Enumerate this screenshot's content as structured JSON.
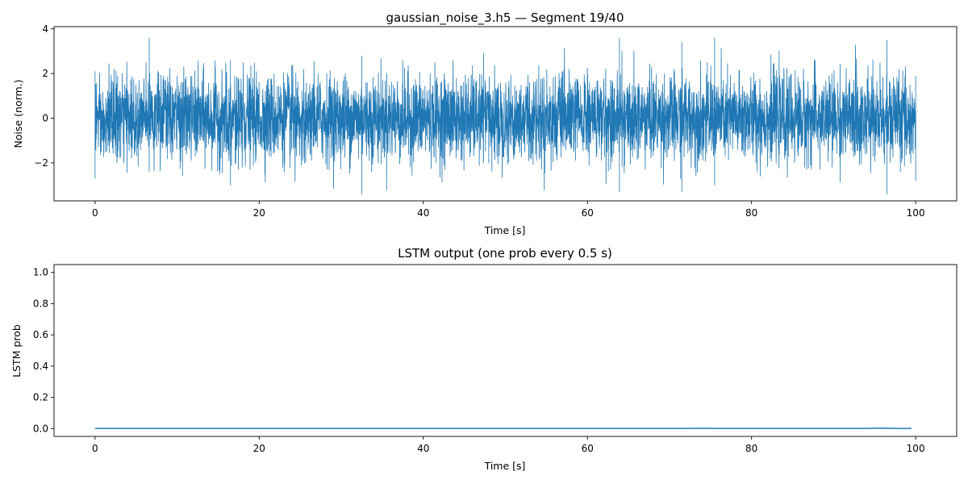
{
  "chart_data": [
    {
      "type": "line",
      "title": "gaussian_noise_3.h5 — Segment 19/40",
      "xlabel": "Time [s]",
      "ylabel": "Noise (norm.)",
      "xlim": [
        -5,
        105
      ],
      "ylim": [
        -3.7,
        4.1
      ],
      "xticks": [
        0,
        20,
        40,
        60,
        80,
        100
      ],
      "xtick_labels": [
        "0",
        "20",
        "40",
        "60",
        "80",
        "100"
      ],
      "yticks": [
        -2,
        0,
        2,
        4
      ],
      "ytick_labels": [
        "−2",
        "0",
        "2",
        "4"
      ],
      "grid": false,
      "color": "#1f77b4",
      "series": [
        {
          "description_of_values": "dense Gaussian noise sampled over 0–100 s",
          "x_range": [
            0,
            100
          ],
          "envelope": [
            {
              "x": 0,
              "min": -2.7,
              "max": 2.1
            },
            {
              "x": 6.6,
              "min": -2.4,
              "max": 3.6
            },
            {
              "x": 16.5,
              "min": -3.0,
              "max": 2.6
            },
            {
              "x": 32.5,
              "min": -3.4,
              "max": 2.8
            },
            {
              "x": 63.9,
              "min": -3.3,
              "max": 3.6
            },
            {
              "x": 71.5,
              "min": -3.3,
              "max": 3.4
            },
            {
              "x": 75.5,
              "min": -3.0,
              "max": 3.6
            },
            {
              "x": 96.5,
              "min": -3.4,
              "max": 3.5
            },
            {
              "x": 100,
              "min": -2.8,
              "max": 1.9
            }
          ]
        }
      ]
    },
    {
      "type": "line",
      "title": "LSTM output (one prob every 0.5 s)",
      "xlabel": "Time [s]",
      "ylabel": "LSTM prob",
      "xlim": [
        -5,
        105
      ],
      "ylim": [
        -0.05,
        1.05
      ],
      "xticks": [
        0,
        20,
        40,
        60,
        80,
        100
      ],
      "xtick_labels": [
        "0",
        "20",
        "40",
        "60",
        "80",
        "100"
      ],
      "yticks": [
        0.0,
        0.2,
        0.4,
        0.6,
        0.8,
        1.0
      ],
      "ytick_labels": [
        "0.0",
        "0.2",
        "0.4",
        "0.6",
        "0.8",
        "1.0"
      ],
      "grid": false,
      "color": "#1f77b4",
      "series": [
        {
          "x_start": 0,
          "x_step": 0.5,
          "count": 200,
          "baseline": 0.001,
          "bumps": [
            {
              "x": 74.0,
              "value": 0.002
            },
            {
              "x": 96.0,
              "value": 0.003
            }
          ]
        }
      ]
    }
  ]
}
